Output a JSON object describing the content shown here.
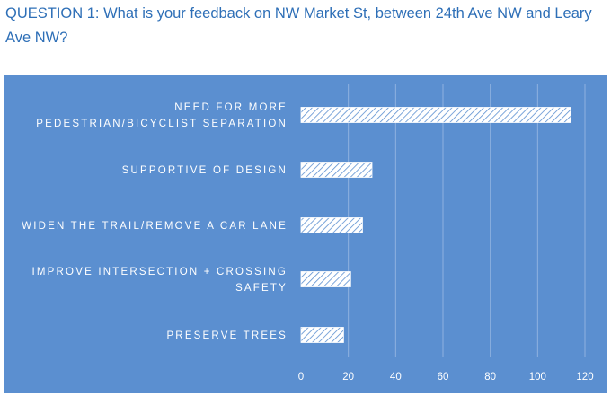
{
  "header": {
    "question": "QUESTION 1: What is your feedback on NW Market St, between 24th Ave NW and Leary Ave NW?"
  },
  "colors": {
    "background": "#5b8fd0",
    "bar_fill": "#ffffff",
    "bar_hatch": "#5b8fd0",
    "gridline": "#8fb2e0",
    "title_text": "#2e6fb7"
  },
  "chart_data": {
    "type": "bar",
    "orientation": "horizontal",
    "title": "",
    "xlabel": "",
    "ylabel": "",
    "categories": [
      [
        "NEED FOR MORE",
        "PEDESTRIAN/BICYCLIST SEPARATION"
      ],
      [
        "SUPPORTIVE OF DESIGN"
      ],
      [
        "WIDEN THE TRAIL/REMOVE A CAR LANE"
      ],
      [
        "IMPROVE INTERSECTION + CROSSING",
        "SAFETY"
      ],
      [
        "PRESERVE TREES"
      ]
    ],
    "values": [
      114,
      30,
      26,
      21,
      18
    ],
    "xlim": [
      0,
      120
    ],
    "xticks": [
      "0",
      "20",
      "40",
      "60",
      "80",
      "100",
      "120"
    ],
    "grid": true,
    "bar_pattern": "diagonal-hatch"
  }
}
